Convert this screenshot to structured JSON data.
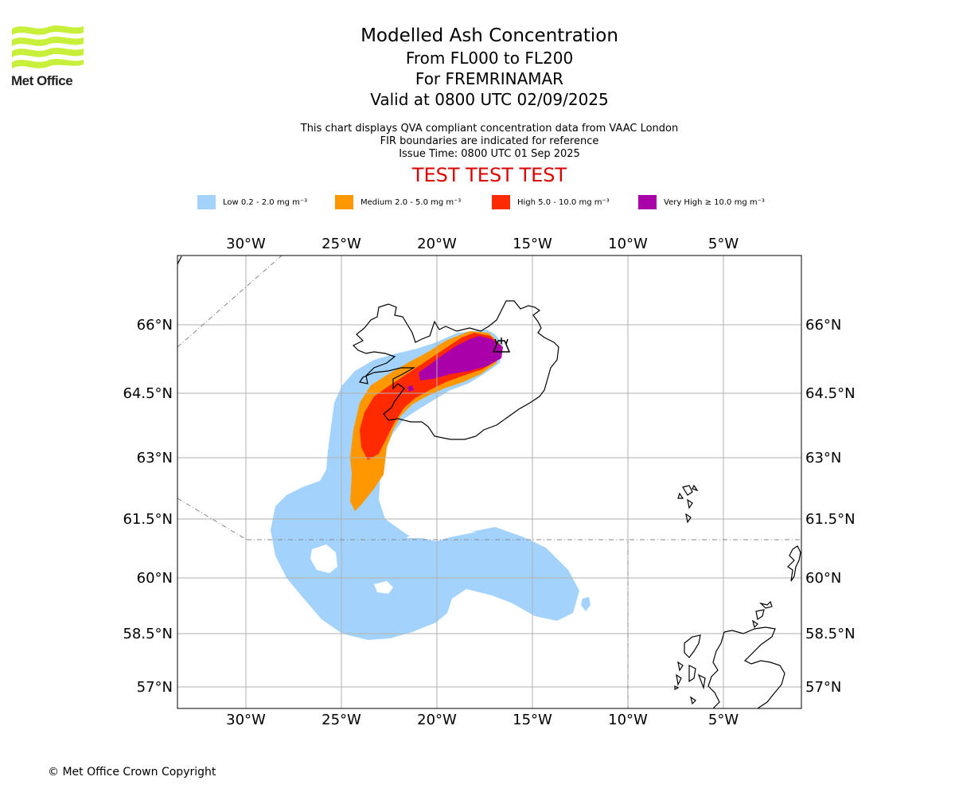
{
  "header": {
    "brand": "Met Office",
    "title": "Modelled Ash Concentration",
    "levels": "From FL000 to FL200",
    "volcano": "For FREMRINAMAR",
    "valid": "Valid at 0800 UTC 02/09/2025",
    "desc1": "This chart displays QVA compliant concentration data from VAAC London",
    "desc2": "FIR boundaries are indicated for reference",
    "issue": "Issue Time: 0800 UTC 01 Sep 2025",
    "test_banner": "TEST TEST TEST"
  },
  "legend": [
    {
      "label": "Low 0.2 - 2.0 mg m⁻³",
      "color": "#a3d3fc"
    },
    {
      "label": "Medium 2.0 - 5.0 mg m⁻³",
      "color": "#ff9800"
    },
    {
      "label": "High 5.0 - 10.0 mg m⁻³",
      "color": "#ff2a00"
    },
    {
      "label": "Very High ≥ 10.0 mg m⁻³",
      "color": "#aa00aa"
    }
  ],
  "map": {
    "lon_labels": [
      "30°W",
      "25°W",
      "20°W",
      "15°W",
      "10°W",
      "5°W"
    ],
    "lat_labels": [
      "66°N",
      "64.5°N",
      "63°N",
      "61.5°N",
      "60°N",
      "58.5°N",
      "57°N"
    ],
    "source_marker": "volcano-icon"
  },
  "footer": {
    "copyright": "© Met Office Crown Copyright"
  }
}
